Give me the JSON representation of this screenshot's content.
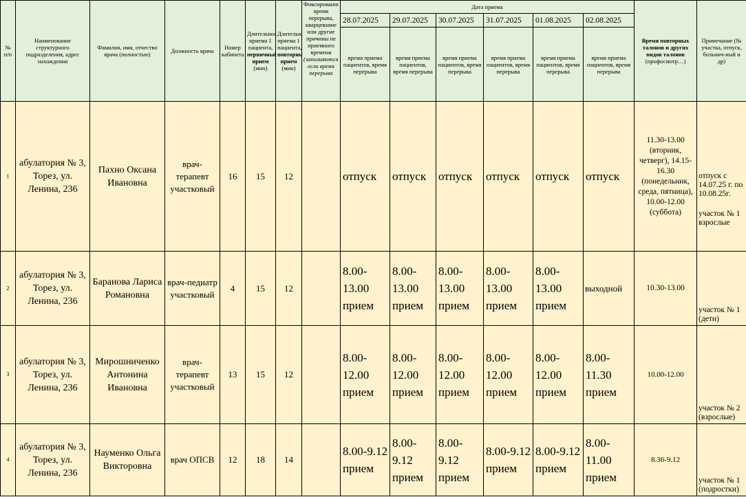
{
  "header": {
    "num": "№ п/п",
    "dept": "Наименование структурного подразделения, адрес нахождения",
    "fio": "Фамилия, имя, отчество врача (полностью)",
    "position": "Должность врача",
    "cabinet": "Номер кабинета",
    "dur_first_pre": "Длительность приема 1 пациента,",
    "dur_first_bold": "первичный прием",
    "dur_first_post": "(мин)",
    "dur_repeat_pre": "Длительность приема 1 пациента,",
    "dur_repeat_bold": "повторный прием",
    "dur_repeat_post": "(мин)",
    "fixed_time": "Фиксированное время перерыва, кварцевание или другие причины не приемного времени",
    "fixed_time_italic": "(заполняются, если время перерыва",
    "date_group": "Дата приема",
    "dates": [
      "28.07.2025",
      "29.07.2025",
      "30.07.2025",
      "31.07.2025",
      "01.08.2025",
      "02.08.2025"
    ],
    "sub_label": "время приема пациентов, время перерыва",
    "repeat_bold": "Время повторных талонов и других видов талонов",
    "repeat_normal": "(профосмотр…)",
    "note": "Примечание (№ участка, отпуск, больнич-ный и др)"
  },
  "rows": [
    {
      "num": "1",
      "dept": "абулатория № 3, Торез, ул. Ленина, 236",
      "fio": "Пахно Оксана Ивановна",
      "position": "врач-терапевт участковый",
      "cabinet": "16",
      "dur_first": "15",
      "dur_repeat": "12",
      "fixed": "",
      "days": [
        "отпуск",
        "отпуск",
        "отпуск",
        "отпуск",
        "отпуск",
        "отпуск"
      ],
      "repeat": "11.30-13.00 (вторник, четверг), 14.15-16.30 (понедельник, среда, пятница), 10.00-12.00 (суббота)",
      "note_top": "отпуск с 14.07.25 г. по 10.08.25г.",
      "note_bottom": "участок № 1 взрослые"
    },
    {
      "num": "2",
      "dept": "абулатория № 3, Торез, ул. Ленина, 236",
      "fio": "Баранова Лариса Романовна",
      "position": "врач-педиатр участковый",
      "cabinet": "4",
      "dur_first": "15",
      "dur_repeat": "12",
      "fixed": "",
      "days": [
        "8.00-13.00 прием",
        "8.00-13.00 прием",
        "8.00-13.00 прием",
        "8.00-13.00 прием",
        "8.00-13.00 прием",
        "выходной"
      ],
      "repeat": "10.30-13.00",
      "note_top": "",
      "note_bottom": "участок № 1 (дети)"
    },
    {
      "num": "3",
      "dept": "абулатория № 3, Торез, ул. Ленина, 236",
      "fio": "Мирошниченко Антонина Ивановна",
      "position": "врач-терапевт участковый",
      "cabinet": "13",
      "dur_first": "15",
      "dur_repeat": "12",
      "fixed": "",
      "days": [
        "8.00-12.00 прием",
        "8.00-12.00 прием",
        "8.00-12.00 прием",
        "8.00-12.00 прием",
        "8.00-12.00 прием",
        "8.00-11.30 прием"
      ],
      "repeat": "10.00-12.00",
      "note_top": "",
      "note_bottom": "участок № 2 (взрослые)"
    },
    {
      "num": "4",
      "dept": "абулатория № 3, Торез, ул. Ленина, 236",
      "fio": "Науменко Ольга Викторовна",
      "position": "врач ОПСВ",
      "cabinet": "12",
      "dur_first": "18",
      "dur_repeat": "14",
      "fixed": "",
      "days": [
        "8.00-9.12 прием",
        "8.00-9.12 прием",
        "8.00-9.12 прием",
        "8.00-9.12 прием",
        "8.00-9.12 прием",
        "8.00-11.00 прием"
      ],
      "repeat": "8.36-9.12",
      "note_top": "",
      "note_bottom": "участок № 1 (подростки)"
    }
  ],
  "colors": {
    "header_bg": "#e2efd9",
    "body_bg": "#fff2cc",
    "border": "#000000"
  }
}
